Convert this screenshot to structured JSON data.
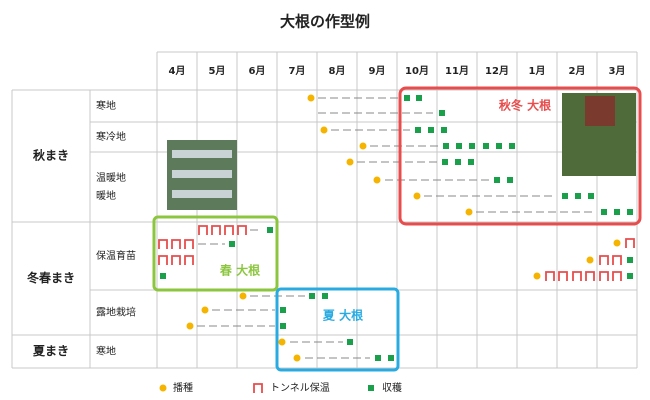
{
  "title": "大根の作型例",
  "months": [
    "4月",
    "5月",
    "6月",
    "7月",
    "8月",
    "9月",
    "10月",
    "11月",
    "12月",
    "1月",
    "2月",
    "3月"
  ],
  "groups": [
    {
      "name": "秋まき",
      "rows": [
        [
          "寒地"
        ],
        [
          "寒冷地"
        ],
        [
          "温暖地",
          "暖地"
        ]
      ]
    },
    {
      "name": "冬春まき",
      "rows": [
        [
          "保温育苗"
        ],
        [
          "露地栽培"
        ]
      ]
    },
    {
      "name": "夏まき",
      "rows": [
        [
          "寒地"
        ]
      ]
    }
  ],
  "annotations": {
    "autumn_winter": "秋冬 大根",
    "spring": "春 大根",
    "summer": "夏 大根"
  },
  "legend": {
    "sowing": "播種",
    "tunnel": "トンネル保温",
    "harvest": "収穫"
  }
}
